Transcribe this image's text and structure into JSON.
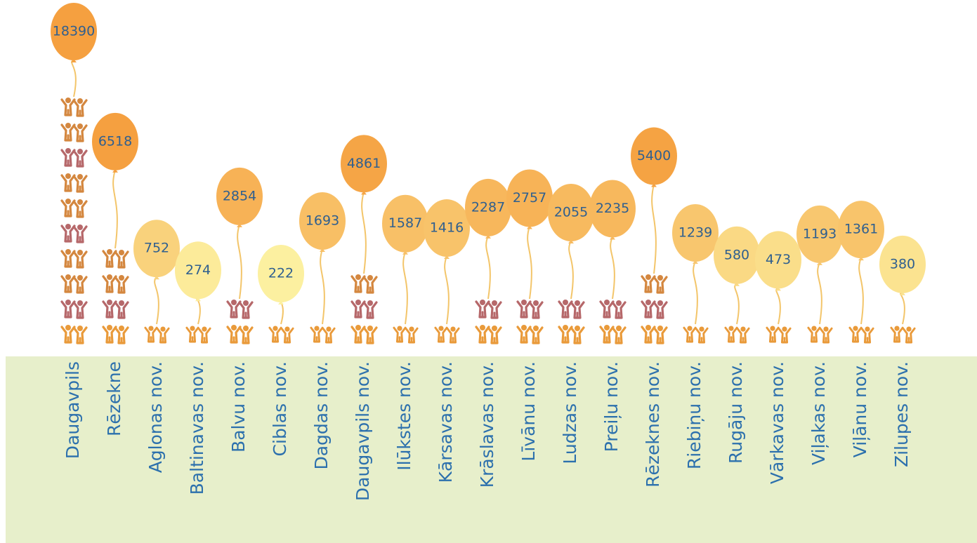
{
  "chart_data": {
    "type": "balloon",
    "categories": [
      "Daugavpils",
      "Rēzekne",
      "Aglonas nov.",
      "Baltinavas nov.",
      "Balvu nov.",
      "Ciblas nov.",
      "Dagdas nov.",
      "Daugavpils nov.",
      "Ilūkstes nov.",
      "Kārsavas nov.",
      "Krāslavas nov.",
      "Līvānu nov.",
      "Ludzas nov.",
      "Preiļu nov.",
      "Rēzeknes nov.",
      "Riebiņu nov.",
      "Rugāju nov.",
      "Vārkavas nov.",
      "Viļakas nov.",
      "Viļānu nov.",
      "Zilupes nov."
    ],
    "values": [
      18390,
      6518,
      752,
      274,
      2854,
      222,
      1693,
      4861,
      1587,
      1416,
      2287,
      2757,
      2055,
      2235,
      5400,
      1239,
      580,
      473,
      1193,
      1361,
      380
    ],
    "color_low": "#fcf0a0",
    "color_high": "#f5a040"
  }
}
